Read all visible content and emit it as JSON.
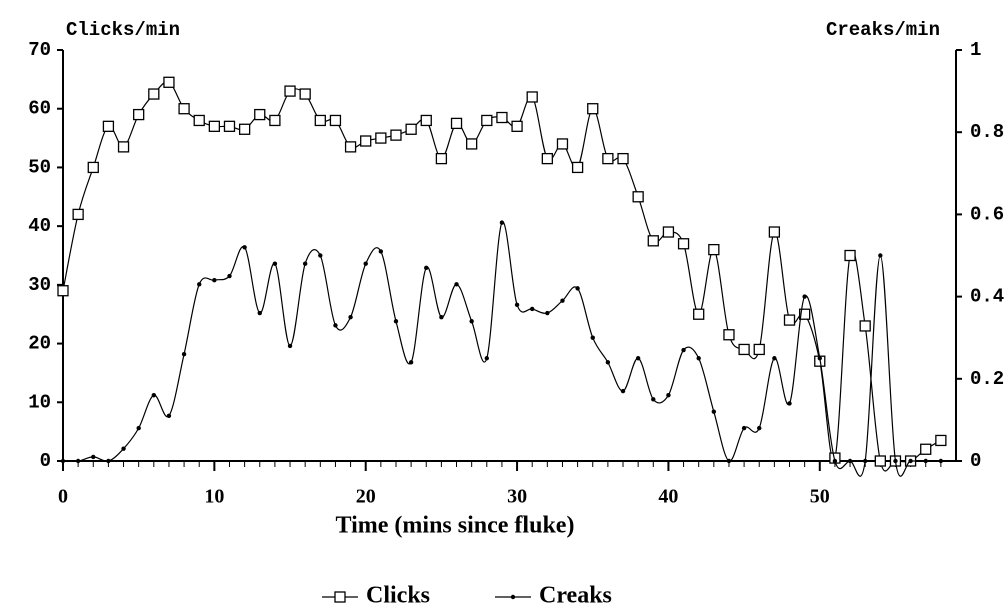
{
  "chart_data": {
    "type": "line",
    "xlabel": "Time (mins since fluke)",
    "ylabel": "Clicks/min",
    "y2label": "Creaks/min",
    "x": [
      0,
      1,
      2,
      3,
      4,
      5,
      6,
      7,
      8,
      9,
      10,
      11,
      12,
      13,
      14,
      15,
      16,
      17,
      18,
      19,
      20,
      21,
      22,
      23,
      24,
      25,
      26,
      27,
      28,
      29,
      30,
      31,
      32,
      33,
      34,
      35,
      36,
      37,
      38,
      39,
      40,
      41,
      42,
      43,
      44,
      45,
      46,
      47,
      48,
      49,
      50,
      51,
      52,
      53,
      54,
      55,
      56,
      57,
      58
    ],
    "series": [
      {
        "name": "Clicks",
        "color": "#000000",
        "marker": "square",
        "values": [
          29,
          42,
          50,
          57,
          53.5,
          59,
          62.5,
          64.5,
          60,
          58,
          57,
          57,
          56.5,
          59,
          58,
          63,
          62.5,
          58,
          58,
          53.5,
          54.5,
          55,
          55.5,
          56.5,
          58,
          51.5,
          57.5,
          54,
          58,
          58.5,
          57,
          62,
          51.5,
          54,
          50,
          60,
          51.5,
          51.5,
          45,
          37.5,
          39,
          37,
          25,
          36,
          21.5,
          19,
          19,
          39,
          24,
          25,
          17,
          0.5,
          35,
          23,
          0,
          0,
          0,
          2,
          3.5
        ]
      },
      {
        "name": "Creaks",
        "color": "#000000",
        "marker": "dot",
        "axis": "y2",
        "values": [
          0,
          0,
          0.01,
          0,
          0.03,
          0.08,
          0.16,
          0.11,
          0.26,
          0.43,
          0.44,
          0.45,
          0.52,
          0.36,
          0.48,
          0.28,
          0.48,
          0.5,
          0.33,
          0.35,
          0.48,
          0.51,
          0.34,
          0.24,
          0.47,
          0.35,
          0.43,
          0.34,
          0.25,
          0.58,
          0.38,
          0.37,
          0.36,
          0.39,
          0.42,
          0.3,
          0.24,
          0.17,
          0.25,
          0.15,
          0.16,
          0.27,
          0.25,
          0.12,
          0,
          0.08,
          0.08,
          0.25,
          0.14,
          0.4,
          0.25,
          0,
          0,
          0,
          0.5,
          0,
          0,
          0,
          0
        ]
      }
    ],
    "xlim": [
      0,
      59
    ],
    "xticks": [
      0,
      10,
      20,
      30,
      40,
      50
    ],
    "ylim": [
      0,
      70
    ],
    "yticks": [
      0,
      10,
      20,
      30,
      40,
      50,
      60,
      70
    ],
    "y2lim": [
      0,
      1
    ],
    "y2ticks": [
      0,
      0.2,
      0.4,
      0.6,
      0.8,
      1
    ],
    "legend": "bottom"
  }
}
